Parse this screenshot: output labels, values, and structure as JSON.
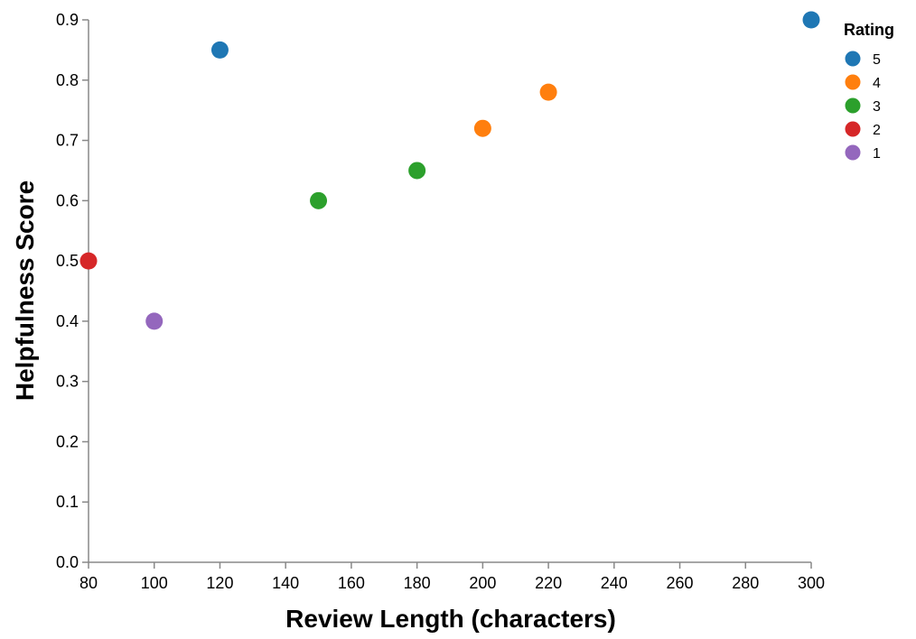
{
  "chart_data": {
    "type": "scatter",
    "xlabel": "Review Length (characters)",
    "ylabel": "Helpfulness Score",
    "xlim": [
      80,
      300
    ],
    "ylim": [
      0,
      0.9
    ],
    "x_ticks": [
      80,
      100,
      120,
      140,
      160,
      180,
      200,
      220,
      240,
      260,
      280,
      300
    ],
    "y_ticks": [
      0.0,
      0.1,
      0.2,
      0.3,
      0.4,
      0.5,
      0.6,
      0.7,
      0.8,
      0.9
    ],
    "grid": false,
    "legend": {
      "title": "Rating",
      "placement": "top-right",
      "entries": [
        {
          "label": "5",
          "color": "#1f77b4"
        },
        {
          "label": "4",
          "color": "#ff7f0e"
        },
        {
          "label": "3",
          "color": "#2ca02c"
        },
        {
          "label": "2",
          "color": "#d62728"
        },
        {
          "label": "1",
          "color": "#9467bd"
        }
      ]
    },
    "points": [
      {
        "x": 80,
        "y": 0.5,
        "rating": "2"
      },
      {
        "x": 100,
        "y": 0.4,
        "rating": "1"
      },
      {
        "x": 120,
        "y": 0.85,
        "rating": "5"
      },
      {
        "x": 150,
        "y": 0.6,
        "rating": "3"
      },
      {
        "x": 180,
        "y": 0.65,
        "rating": "3"
      },
      {
        "x": 200,
        "y": 0.72,
        "rating": "4"
      },
      {
        "x": 220,
        "y": 0.78,
        "rating": "4"
      },
      {
        "x": 300,
        "y": 0.9,
        "rating": "5"
      }
    ]
  }
}
